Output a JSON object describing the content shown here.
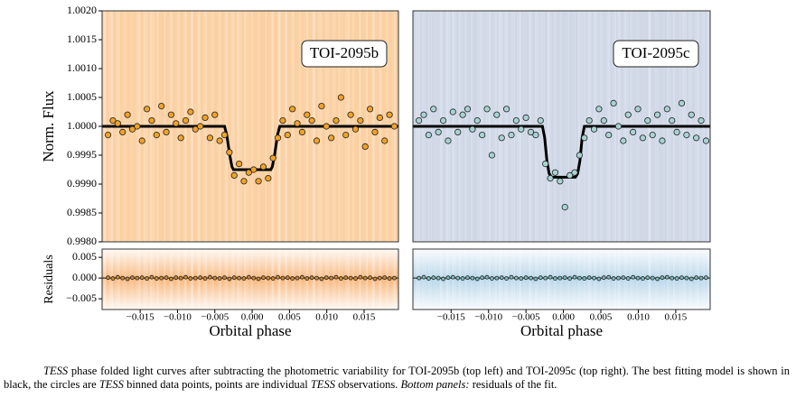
{
  "chart_data": [
    {
      "type": "scatter",
      "label": "TOI-2095b",
      "ylabel": "Norm. Flux",
      "xlim": [
        -0.0201,
        0.0196
      ],
      "ylim": [
        0.998,
        1.002
      ],
      "yticks": [
        {
          "value": 0.998,
          "label": "0.9980"
        },
        {
          "value": 0.9985,
          "label": "0.9985"
        },
        {
          "value": 0.999,
          "label": "0.9990"
        },
        {
          "value": 0.9995,
          "label": "0.9995"
        },
        {
          "value": 1.0,
          "label": "1.0000"
        },
        {
          "value": 1.0005,
          "label": "1.0005"
        },
        {
          "value": 1.001,
          "label": "1.0010"
        },
        {
          "value": 1.0015,
          "label": "1.0015"
        },
        {
          "value": 1.002,
          "label": "1.0020"
        }
      ],
      "background": "#fbd0a2",
      "points": {
        "color": "#f0a326",
        "x": [
          -0.0193,
          -0.01865,
          -0.018,
          -0.01735,
          -0.0167,
          -0.01605,
          -0.0154,
          -0.01475,
          -0.0141,
          -0.01345,
          -0.0128,
          -0.01215,
          -0.0115,
          -0.01085,
          -0.0102,
          -0.00955,
          -0.0089,
          -0.00825,
          -0.0076,
          -0.00695,
          -0.0063,
          -0.00565,
          -0.005,
          -0.00435,
          -0.0037,
          -0.00305,
          -0.0024,
          -0.00175,
          -0.0011,
          -0.00045,
          0.0002,
          0.00085,
          0.0015,
          0.00215,
          0.0028,
          0.00345,
          0.0041,
          0.00475,
          0.0054,
          0.00605,
          0.0067,
          0.00735,
          0.008,
          0.00865,
          0.0093,
          0.00995,
          0.0106,
          0.01125,
          0.0119,
          0.01255,
          0.0132,
          0.01385,
          0.0145,
          0.01515,
          0.0158,
          0.01645,
          0.0171,
          0.01775,
          0.0184,
          0.01905
        ],
        "y": [
          0.99985,
          1.0001,
          1.00005,
          0.9999,
          1.0002,
          0.99995,
          1.0,
          0.99975,
          1.0003,
          1.0001,
          0.99985,
          1.00035,
          0.9999,
          1.0002,
          1.00005,
          0.9998,
          1.0001,
          1.00025,
          0.99995,
          1.0,
          1.00015,
          0.9998,
          1.0002,
          0.99975,
          0.99985,
          0.99955,
          0.99915,
          0.99935,
          0.99905,
          0.9992,
          0.99925,
          0.99905,
          0.9993,
          0.9991,
          0.99945,
          0.9998,
          1.0001,
          0.99985,
          1.0003,
          1.00005,
          0.9999,
          1.0002,
          1.0001,
          0.99975,
          1.00035,
          1.0,
          0.9998,
          1.0001,
          1.0005,
          0.99985,
          1.0002,
          0.99995,
          1.0001,
          0.99965,
          1.0003,
          0.9999,
          1.00015,
          0.99975,
          1.0002,
          1.0
        ]
      },
      "model": {
        "color": "#000000",
        "x": [
          -0.0201,
          -0.0037,
          -0.0034,
          -0.003,
          -0.0027,
          -0.0025,
          0.0025,
          0.0027,
          0.003,
          0.0034,
          0.0037,
          0.0196
        ],
        "y": [
          1.0,
          1.0,
          0.99985,
          0.9995,
          0.9993,
          0.99925,
          0.99925,
          0.9993,
          0.9995,
          0.99985,
          1.0,
          1.0
        ]
      }
    },
    {
      "type": "scatter",
      "label": "TOI-2095c",
      "xlim": [
        -0.0201,
        0.0196
      ],
      "ylim": [
        0.998,
        1.002
      ],
      "background": "#cfd7e6",
      "points": {
        "color": "#a8d3d3",
        "x": [
          -0.0193,
          -0.01865,
          -0.018,
          -0.01735,
          -0.0167,
          -0.01605,
          -0.0154,
          -0.01475,
          -0.0141,
          -0.01345,
          -0.0128,
          -0.01215,
          -0.0115,
          -0.01085,
          -0.0102,
          -0.00955,
          -0.0089,
          -0.00825,
          -0.0076,
          -0.00695,
          -0.0063,
          -0.00565,
          -0.005,
          -0.00435,
          -0.0037,
          -0.00305,
          -0.0024,
          -0.00175,
          -0.0011,
          -0.00045,
          0.0002,
          0.00085,
          0.0015,
          0.00215,
          0.0028,
          0.00345,
          0.0041,
          0.00475,
          0.0054,
          0.00605,
          0.0067,
          0.00735,
          0.008,
          0.00865,
          0.0093,
          0.00995,
          0.0106,
          0.01125,
          0.0119,
          0.01255,
          0.0132,
          0.01385,
          0.0145,
          0.01515,
          0.0158,
          0.01645,
          0.0171,
          0.01775,
          0.0184,
          0.01905
        ],
        "y": [
          1.0001,
          1.0002,
          0.99985,
          1.0003,
          0.9999,
          1.0001,
          0.99975,
          1.00025,
          0.9999,
          1.0002,
          1.0003,
          0.99995,
          1.0001,
          0.99985,
          1.0003,
          0.9995,
          1.0002,
          0.9998,
          1.0003,
          0.99985,
          1.0001,
          0.99995,
          1.00015,
          0.9999,
          0.99985,
          1.0001,
          0.99935,
          0.9991,
          0.9992,
          0.99905,
          0.9986,
          0.99915,
          0.9992,
          0.9995,
          0.9998,
          1.0001,
          0.99995,
          1.0003,
          1.0001,
          0.99985,
          1.0004,
          1.0,
          0.99975,
          1.0002,
          0.9999,
          1.0003,
          0.9998,
          1.0001,
          0.99985,
          1.0002,
          0.99975,
          1.0003,
          1.0001,
          0.9999,
          1.0004,
          0.99985,
          1.0002,
          0.9998,
          1.0001,
          0.99975
        ]
      },
      "model": {
        "color": "#000000",
        "x": [
          -0.0201,
          -0.0028,
          -0.0025,
          -0.0022,
          -0.0019,
          -0.0016,
          0.0016,
          0.0019,
          0.0022,
          0.0025,
          0.0028,
          0.0196
        ],
        "y": [
          1.0,
          1.0,
          0.9998,
          0.9994,
          0.99918,
          0.99912,
          0.99912,
          0.99918,
          0.9994,
          0.9998,
          1.0,
          1.0
        ]
      }
    },
    {
      "type": "scatter",
      "ylabel": "Residuals",
      "xlabel": "Orbital phase",
      "xlim": [
        -0.0201,
        0.0196
      ],
      "ylim": [
        -0.0076,
        0.007
      ],
      "yticks": [
        {
          "value": -0.005,
          "label": "−0.005"
        },
        {
          "value": 0,
          "label": "0.000"
        },
        {
          "value": 0.005,
          "label": "0.005"
        }
      ],
      "xticks": [
        {
          "value": -0.015,
          "label": "−0.015"
        },
        {
          "value": -0.01,
          "label": "−0.010"
        },
        {
          "value": -0.005,
          "label": "−0.005"
        },
        {
          "value": 0,
          "label": "0.000"
        },
        {
          "value": 0.005,
          "label": "0.005"
        },
        {
          "value": 0.01,
          "label": "0.010"
        },
        {
          "value": 0.015,
          "label": "0.015"
        }
      ],
      "background": "#f8b980",
      "points": {
        "color": "#d08a30",
        "x": [
          -0.0193,
          -0.01865,
          -0.018,
          -0.01735,
          -0.0167,
          -0.01605,
          -0.0154,
          -0.01475,
          -0.0141,
          -0.01345,
          -0.0128,
          -0.01215,
          -0.0115,
          -0.01085,
          -0.0102,
          -0.00955,
          -0.0089,
          -0.00825,
          -0.0076,
          -0.00695,
          -0.0063,
          -0.00565,
          -0.005,
          -0.00435,
          -0.0037,
          -0.00305,
          -0.0024,
          -0.00175,
          -0.0011,
          -0.00045,
          0.0002,
          0.00085,
          0.0015,
          0.00215,
          0.0028,
          0.00345,
          0.0041,
          0.00475,
          0.0054,
          0.00605,
          0.0067,
          0.00735,
          0.008,
          0.00865,
          0.0093,
          0.00995,
          0.0106,
          0.01125,
          0.0119,
          0.01255,
          0.0132,
          0.01385,
          0.0145,
          0.01515,
          0.0158,
          0.01645,
          0.0171,
          0.01775,
          0.0184,
          0.01905
        ],
        "y": [
          0.0001,
          -0.0001,
          0.0002,
          0.0,
          -0.0002,
          0.0001,
          0.0,
          0.0001,
          -0.0001,
          0.0002,
          -0.0001,
          0.0,
          0.0001,
          -0.0002,
          0.0001,
          0.0,
          0.0002,
          -0.0001,
          0.0,
          0.0001,
          -0.0001,
          0.0002,
          0.0,
          -0.0001,
          0.0001,
          -0.0002,
          0.0001,
          0.0,
          -0.0001,
          0.0002,
          0.0,
          -0.0002,
          0.0001,
          0.0,
          -0.0001,
          0.0002,
          0.0,
          0.0001,
          -0.0001,
          0.0,
          0.0002,
          -0.0001,
          0.0001,
          0.0,
          -0.0002,
          0.0001,
          0.0,
          0.0002,
          -0.0001,
          0.0001,
          0.0,
          -0.0001,
          0.0002,
          0.0,
          0.0001,
          -0.0002,
          0.0,
          0.0001,
          -0.0001,
          0.0
        ]
      }
    },
    {
      "type": "scatter",
      "xlabel": "Orbital phase",
      "xlim": [
        -0.0201,
        0.0196
      ],
      "ylim": [
        -0.0076,
        0.007
      ],
      "xticks": [
        {
          "value": -0.015,
          "label": "−0.015"
        },
        {
          "value": -0.01,
          "label": "−0.010"
        },
        {
          "value": -0.005,
          "label": "−0.005"
        },
        {
          "value": 0,
          "label": "0.000"
        },
        {
          "value": 0.005,
          "label": "0.005"
        },
        {
          "value": 0.01,
          "label": "0.010"
        },
        {
          "value": 0.015,
          "label": "0.015"
        }
      ],
      "background": "#b9d6ea",
      "points": {
        "color": "#7fbcbc",
        "x": [
          -0.0193,
          -0.01865,
          -0.018,
          -0.01735,
          -0.0167,
          -0.01605,
          -0.0154,
          -0.01475,
          -0.0141,
          -0.01345,
          -0.0128,
          -0.01215,
          -0.0115,
          -0.01085,
          -0.0102,
          -0.00955,
          -0.0089,
          -0.00825,
          -0.0076,
          -0.00695,
          -0.0063,
          -0.00565,
          -0.005,
          -0.00435,
          -0.0037,
          -0.00305,
          -0.0024,
          -0.00175,
          -0.0011,
          -0.00045,
          0.0002,
          0.00085,
          0.0015,
          0.00215,
          0.0028,
          0.00345,
          0.0041,
          0.00475,
          0.0054,
          0.00605,
          0.0067,
          0.00735,
          0.008,
          0.00865,
          0.0093,
          0.00995,
          0.0106,
          0.01125,
          0.0119,
          0.01255,
          0.0132,
          0.01385,
          0.0145,
          0.01515,
          0.0158,
          0.01645,
          0.0171,
          0.01775,
          0.0184,
          0.01905
        ],
        "y": [
          0.0,
          0.0002,
          -0.0001,
          0.0001,
          0.0,
          -0.0002,
          0.0001,
          0.0002,
          0.0,
          -0.0001,
          0.0001,
          0.0,
          -0.0002,
          0.0001,
          0.0002,
          -0.0001,
          0.0,
          0.0001,
          -0.0001,
          0.0002,
          0.0,
          -0.0001,
          0.0001,
          0.0,
          -0.0002,
          0.0001,
          0.0,
          0.0002,
          -0.0001,
          0.0,
          0.0001,
          -0.0001,
          0.0002,
          0.0,
          -0.0001,
          0.0001,
          0.0,
          -0.0002,
          0.0001,
          0.0002,
          -0.0001,
          0.0,
          0.0001,
          -0.0001,
          0.0002,
          0.0,
          -0.0001,
          0.0001,
          0.0,
          -0.0002,
          0.0001,
          0.0002,
          0.0,
          -0.0001,
          0.0001,
          0.0,
          -0.0002,
          0.0001,
          0.0,
          0.0001
        ]
      }
    }
  ],
  "caption": [
    {
      "text": "TESS",
      "italic": true
    },
    {
      "text": " phase folded light curves after subtracting the photometric variability for TOI-2095b (top left) and TOI-2095c (top right). The best fitting model is shown in black, the circles are "
    },
    {
      "text": "TESS",
      "italic": true
    },
    {
      "text": " binned data points, points are individual "
    },
    {
      "text": "TESS",
      "italic": true
    },
    {
      "text": " observations. "
    },
    {
      "text": "Bottom panels:",
      "italic": true
    },
    {
      "text": " residuals of the fit."
    }
  ]
}
